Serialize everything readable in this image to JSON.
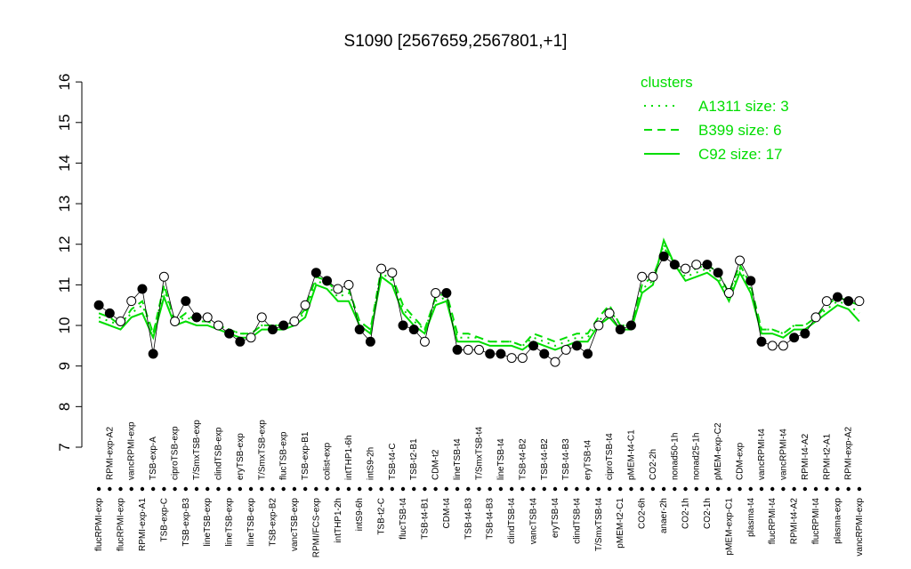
{
  "chart_data": {
    "type": "line",
    "title": "S1090 [2567659,2567801,+1]",
    "ylim": [
      7,
      16.2
    ],
    "yticks": [
      7,
      8,
      9,
      10,
      11,
      12,
      13,
      14,
      15,
      16
    ],
    "categories": [
      "flucRPMI-exp",
      "RPMI-exp-A2",
      "flucRPMI-exp",
      "vancRPMI-exp",
      "RPMI-exp-A1",
      "TSB-exp-A",
      "TSB-exp-C",
      "ciproTSB-exp",
      "TSB-exp-B3",
      "T/SmxTSB-exp",
      "lineTSB-exp",
      "clindTSB-exp",
      "lineTSB-exp",
      "eryTSB-exp",
      "lineTSB-exp",
      "T/SmxTSB-exp",
      "TSB-exp-B2",
      "flucTSB-exp",
      "vancTSB-exp",
      "TSB-exp-B1",
      "RPMI/FCS-exp",
      "colist-exp",
      "intTHP1-2h",
      "intTHP1-6h",
      "intS9-6h",
      "intS9-2h",
      "TSB-t2-C",
      "TSB-t4-C",
      "flucTSB-t4",
      "TSB-t2-B1",
      "TSB-t4-B1",
      "CDM-t2",
      "CDM-t4",
      "lineTSB-t4",
      "TSB-t4-B3",
      "T/SmxTSB-t4",
      "TSB-t4-B3",
      "lineTSB-t4",
      "clindTSB-t4",
      "TSB-t4-B2",
      "vancTSB-t4",
      "TSB-t4-B2",
      "eryTSB-t4",
      "TSB-t4-B3",
      "clindTSB-t4",
      "eryTSB-t4",
      "T/SmxTSB-t4",
      "ciproTSB-t4",
      "pMEM-t2-C1",
      "pMEM-t4-C1",
      "CO2-6h",
      "CO2-2h",
      "anaer-2h",
      "nonad50-1h",
      "CO2-1h",
      "nonad25-1h",
      "CO2-1h",
      "pMEM-exp-C2",
      "pMEM-exp-C1",
      "CDM-exp",
      "plasma-t4",
      "vancRPMI-t4",
      "flucRPMI-t4",
      "vancRPMI-t4",
      "RPMI-t4-A2",
      "RPMI-t4-A2",
      "flucRPMI-t4",
      "RPMI-t2-A1",
      "plasma-exp",
      "RPMI-exp-A2",
      "vancRPMI-exp"
    ],
    "values": [
      10.5,
      10.3,
      10.1,
      10.6,
      10.9,
      9.3,
      11.2,
      10.1,
      10.6,
      10.2,
      10.2,
      10.0,
      9.8,
      9.6,
      9.7,
      10.2,
      9.9,
      10.0,
      10.1,
      10.5,
      11.3,
      11.1,
      10.9,
      11.0,
      9.9,
      9.6,
      11.4,
      11.3,
      10.0,
      9.9,
      9.6,
      10.8,
      10.8,
      9.4,
      9.4,
      9.4,
      9.3,
      9.3,
      9.2,
      9.2,
      9.5,
      9.3,
      9.1,
      9.4,
      9.5,
      9.3,
      10.0,
      10.3,
      9.9,
      10.0,
      11.2,
      11.2,
      11.7,
      11.5,
      11.4,
      11.5,
      11.5,
      11.3,
      10.8,
      11.6,
      11.1,
      9.6,
      9.5,
      9.5,
      9.7,
      9.8,
      10.2,
      10.6,
      10.7,
      10.6,
      10.6
    ],
    "legend_title": "clusters",
    "series": [
      {
        "name": "A1311 size: 3",
        "color": "#00dd00",
        "dash": "dotted",
        "values": [
          10.2,
          10.1,
          10.0,
          10.3,
          10.5,
          9.8,
          10.9,
          10.1,
          10.2,
          10.1,
          10.1,
          10.0,
          9.9,
          9.8,
          9.8,
          10.0,
          10.0,
          10.0,
          10.1,
          10.3,
          11.1,
          11.0,
          10.7,
          10.8,
          10.1,
          9.9,
          11.3,
          11.1,
          10.4,
          10.1,
          9.9,
          10.6,
          10.7,
          9.7,
          9.7,
          9.7,
          9.6,
          9.6,
          9.6,
          9.5,
          9.7,
          9.6,
          9.5,
          9.6,
          9.7,
          9.7,
          10.1,
          10.4,
          10.0,
          10.0,
          10.9,
          11.1,
          12.0,
          11.5,
          11.2,
          11.3,
          11.4,
          11.2,
          10.7,
          11.4,
          10.9,
          9.9,
          9.9,
          9.8,
          10.0,
          10.0,
          10.2,
          10.4,
          10.6,
          10.5,
          10.3
        ]
      },
      {
        "name": "B399 size: 6",
        "color": "#00dd00",
        "dash": "dashed",
        "values": [
          10.3,
          10.2,
          10.0,
          10.4,
          10.6,
          9.8,
          11.0,
          10.1,
          10.3,
          10.1,
          10.1,
          10.0,
          9.9,
          9.8,
          9.8,
          10.0,
          10.0,
          10.0,
          10.1,
          10.4,
          11.2,
          11.1,
          10.8,
          10.9,
          10.1,
          9.9,
          11.4,
          11.2,
          10.5,
          10.2,
          9.9,
          10.7,
          10.8,
          9.8,
          9.8,
          9.7,
          9.6,
          9.6,
          9.6,
          9.5,
          9.8,
          9.7,
          9.6,
          9.7,
          9.8,
          9.8,
          10.2,
          10.5,
          10.0,
          10.0,
          11.0,
          11.2,
          11.9,
          11.6,
          11.3,
          11.4,
          11.5,
          11.3,
          10.8,
          11.5,
          11.0,
          9.9,
          9.9,
          9.8,
          10.0,
          10.0,
          10.2,
          10.5,
          10.7,
          10.6,
          10.5
        ]
      },
      {
        "name": "C92 size: 17",
        "color": "#00dd00",
        "dash": "solid",
        "values": [
          10.1,
          10.0,
          9.9,
          10.2,
          10.3,
          9.7,
          10.7,
          10.0,
          10.1,
          10.0,
          10.0,
          9.9,
          9.8,
          9.7,
          9.7,
          9.9,
          9.9,
          9.9,
          10.0,
          10.2,
          11.0,
          10.9,
          10.6,
          10.6,
          10.0,
          9.8,
          11.2,
          11.0,
          10.3,
          10.0,
          9.8,
          10.5,
          10.6,
          9.6,
          9.6,
          9.6,
          9.5,
          9.5,
          9.5,
          9.4,
          9.6,
          9.5,
          9.4,
          9.5,
          9.6,
          9.6,
          10.0,
          10.2,
          9.9,
          9.9,
          10.8,
          11.0,
          12.1,
          11.5,
          11.1,
          11.2,
          11.3,
          11.1,
          10.6,
          11.3,
          10.8,
          9.8,
          9.8,
          9.7,
          9.9,
          9.9,
          10.1,
          10.3,
          10.5,
          10.4,
          10.1
        ]
      }
    ]
  }
}
